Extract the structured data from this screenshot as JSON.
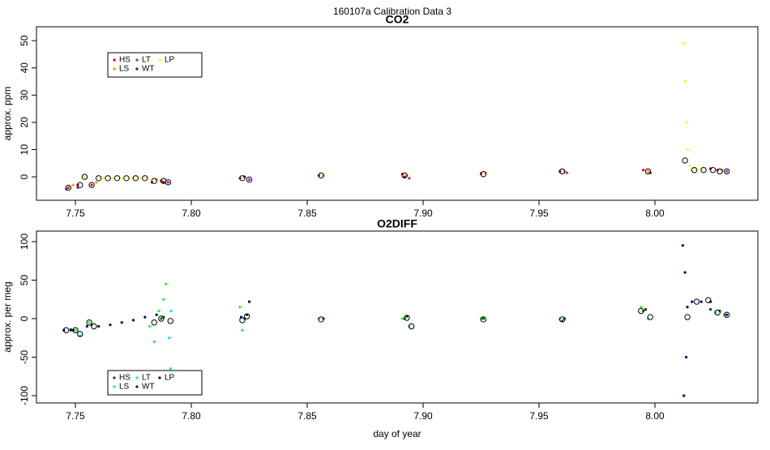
{
  "title": "160107a   Calibration Data 3",
  "chart_data": [
    {
      "type": "scatter",
      "title": "CO2",
      "y_label": "approx. ppm",
      "xlim": [
        7.7332,
        8.0444
      ],
      "ylim": [
        -8.6,
        55.1
      ],
      "xticks": [
        7.75,
        {
          "value": 7.8,
          "label": "7.80"
        },
        7.85,
        {
          "value": 7.9,
          "label": "7.90"
        },
        7.95,
        {
          "value": 8,
          "label": "8.00"
        }
      ],
      "yticks": [
        0,
        10,
        20,
        30,
        40,
        50
      ],
      "legend": "top-left",
      "series": [
        {
          "name": "HS",
          "color": "#e00000",
          "x": [
            7.747,
            7.757,
            7.783,
            7.787,
            7.821,
            7.855,
            7.891,
            7.925,
            7.959,
            7.995,
            8.027
          ],
          "values": [
            -4,
            -3,
            -2,
            -1.5,
            -0.5,
            0.5,
            1,
            1.2,
            2,
            2.5,
            2.5
          ]
        },
        {
          "name": "LS",
          "color": "#ff9900",
          "x": [
            7.749,
            7.759,
            7.785,
            7.823,
            7.857,
            7.893,
            7.927,
            7.961,
            7.997,
            8.029
          ],
          "values": [
            -3,
            -2,
            -1,
            0,
            0.5,
            0.5,
            1.5,
            2,
            2,
            2.5
          ]
        },
        {
          "name": "LT",
          "color": "#8a2be2",
          "x": [
            7.746,
            7.751,
            7.79,
            7.825,
            7.894,
            7.962,
            8.031
          ],
          "values": [
            -4.5,
            -4,
            -2,
            -1,
            -0.5,
            1.5,
            2
          ]
        },
        {
          "name": "WT",
          "color": "#8b0000",
          "x": [
            7.751,
            7.788,
            7.823,
            7.892,
            7.998,
            8.024
          ],
          "values": [
            -3,
            -2,
            0,
            0,
            1.5,
            3
          ]
        },
        {
          "name": "LP",
          "color": "#ffff00",
          "x": [
            7.754,
            7.762,
            7.766,
            7.77,
            7.774,
            7.778,
            7.781,
            8.0125,
            8.013,
            8.0135,
            8.014,
            8.015,
            8.017,
            8.02
          ],
          "values": [
            0,
            -0.5,
            -0.5,
            -0.5,
            -0.5,
            -0.5,
            -0.5,
            49,
            35,
            20,
            10,
            4,
            3,
            3
          ]
        }
      ],
      "averages": {
        "x": [
          7.747,
          7.752,
          7.754,
          7.757,
          7.76,
          7.764,
          7.768,
          7.772,
          7.776,
          7.78,
          7.784,
          7.788,
          7.79,
          7.822,
          7.825,
          7.856,
          7.892,
          7.926,
          7.96,
          7.997,
          8.013,
          8.017,
          8.021,
          8.025,
          8.028,
          8.031
        ],
        "values": [
          -4,
          -3,
          0,
          -3,
          -0.5,
          -0.5,
          -0.5,
          -0.5,
          -0.5,
          -0.5,
          -1.5,
          -1.5,
          -2,
          -0.5,
          -1,
          0.5,
          0.5,
          1,
          2,
          2,
          6,
          2.5,
          2.5,
          2.5,
          2,
          2
        ]
      }
    },
    {
      "type": "scatter",
      "title": "O2DIFF",
      "y_label": "approx. per meg",
      "x_label": "day of year",
      "xlim": [
        7.7332,
        8.0444
      ],
      "ylim": [
        -109.5,
        113.7
      ],
      "xticks": [
        7.75,
        {
          "value": 7.8,
          "label": "7.80"
        },
        7.85,
        {
          "value": 7.9,
          "label": "7.90"
        },
        7.95,
        {
          "value": 8,
          "label": "8.00"
        }
      ],
      "yticks": [
        -100,
        -50,
        0,
        50,
        100
      ],
      "legend": "bottom-left",
      "series": [
        {
          "name": "HS",
          "color": "#006400",
          "x": [
            7.748,
            7.757,
            7.787,
            7.823,
            7.857,
            7.892,
            7.926,
            7.96,
            7.995,
            8.028
          ],
          "values": [
            -14,
            -8,
            0,
            0,
            0,
            0,
            0,
            -3,
            10,
            10
          ]
        },
        {
          "name": "LS",
          "color": "#33ee33",
          "x": [
            7.75,
            7.756,
            7.782,
            7.784,
            7.786,
            7.788,
            7.789,
            7.821,
            7.822,
            7.855,
            7.891,
            7.925,
            7.959,
            7.994,
            8.026
          ],
          "values": [
            -15,
            -5,
            -10,
            -30,
            10,
            25,
            45,
            15,
            -15,
            0,
            0,
            0,
            0,
            15,
            8
          ]
        },
        {
          "name": "LT",
          "color": "#00e5ee",
          "x": [
            7.752,
            7.791,
            7.7905,
            7.7912,
            7.894,
            7.997,
            8.03
          ],
          "values": [
            -22,
            -65,
            -25,
            10,
            -10,
            0,
            5
          ]
        },
        {
          "name": "WT",
          "color": "#003300",
          "x": [
            7.749,
            7.788,
            7.824,
            7.893,
            7.961,
            7.996,
            8.024
          ],
          "values": [
            -15,
            2,
            5,
            3,
            0,
            12,
            12
          ]
        },
        {
          "name": "LP",
          "color": "#000080",
          "x": [
            7.745,
            7.748,
            7.755,
            7.76,
            7.765,
            7.77,
            7.775,
            7.78,
            7.785,
            7.8215,
            7.825,
            8.012,
            8.0125,
            8.013,
            8.0135,
            8.014,
            8.016,
            8.02,
            8.024,
            8.031
          ],
          "values": [
            -15,
            -15,
            -10,
            -10,
            -8,
            -5,
            -2,
            2,
            5,
            2,
            22,
            95,
            -100,
            60,
            -50,
            15,
            22,
            22,
            22,
            5
          ]
        }
      ],
      "averages": {
        "x": [
          7.746,
          7.75,
          7.752,
          7.756,
          7.758,
          7.784,
          7.787,
          7.791,
          7.822,
          7.824,
          7.856,
          7.893,
          7.895,
          7.926,
          7.96,
          7.994,
          7.998,
          8.014,
          8.018,
          8.023,
          8.027,
          8.031
        ],
        "values": [
          -15,
          -15,
          -20,
          -5,
          -10,
          -5,
          0,
          -3,
          -2,
          3,
          -1,
          1,
          -10,
          -1,
          -1,
          10,
          2,
          2,
          22,
          24,
          8,
          5
        ]
      }
    }
  ]
}
